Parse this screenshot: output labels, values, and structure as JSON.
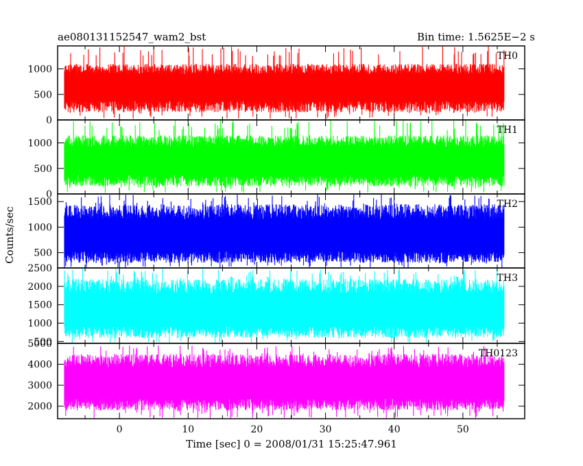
{
  "chart_data": {
    "type": "line",
    "title_left": "ae080131152547_wam2_bst",
    "title_right": "Bin time: 1.5625E−2 s",
    "xlabel": "Time [sec] 0 = 2008/01/31 15:25:47.961",
    "ylabel": "Counts/sec",
    "xlim": [
      -9,
      59
    ],
    "x_ticks": [
      0,
      10,
      20,
      30,
      40,
      50
    ],
    "x_range_data": [
      -8,
      56
    ],
    "grid": false,
    "panels": [
      {
        "name": "TH0",
        "color": "#ff0000",
        "ylim": [
          0,
          1450
        ],
        "y_ticks": [
          0,
          500,
          1000
        ],
        "mean": 650,
        "low_typical": 150,
        "high_typical": 1100,
        "min": 20,
        "max": 1450
      },
      {
        "name": "TH1",
        "color": "#00ff00",
        "ylim": [
          0,
          1450
        ],
        "y_ticks": [
          0,
          500,
          1000
        ],
        "mean": 640,
        "low_typical": 150,
        "high_typical": 1150,
        "min": 20,
        "max": 1450
      },
      {
        "name": "TH2",
        "color": "#0000ff",
        "ylim": [
          200,
          1650
        ],
        "y_ticks": [
          500,
          1000,
          1500
        ],
        "mean": 800,
        "low_typical": 300,
        "high_typical": 1450,
        "min": 200,
        "max": 1650
      },
      {
        "name": "TH3",
        "color": "#00ffff",
        "ylim": [
          450,
          2500
        ],
        "y_ticks": [
          500,
          1000,
          1500,
          2000,
          2500
        ],
        "mean": 1300,
        "low_typical": 600,
        "high_typical": 2200,
        "min": 450,
        "max": 2500
      },
      {
        "name": "TH0123",
        "color": "#ff00ff",
        "ylim": [
          1400,
          5000
        ],
        "y_ticks": [
          2000,
          3000,
          4000,
          5000
        ],
        "mean": 3050,
        "low_typical": 1800,
        "high_typical": 4500,
        "min": 1400,
        "max": 4900
      }
    ]
  }
}
